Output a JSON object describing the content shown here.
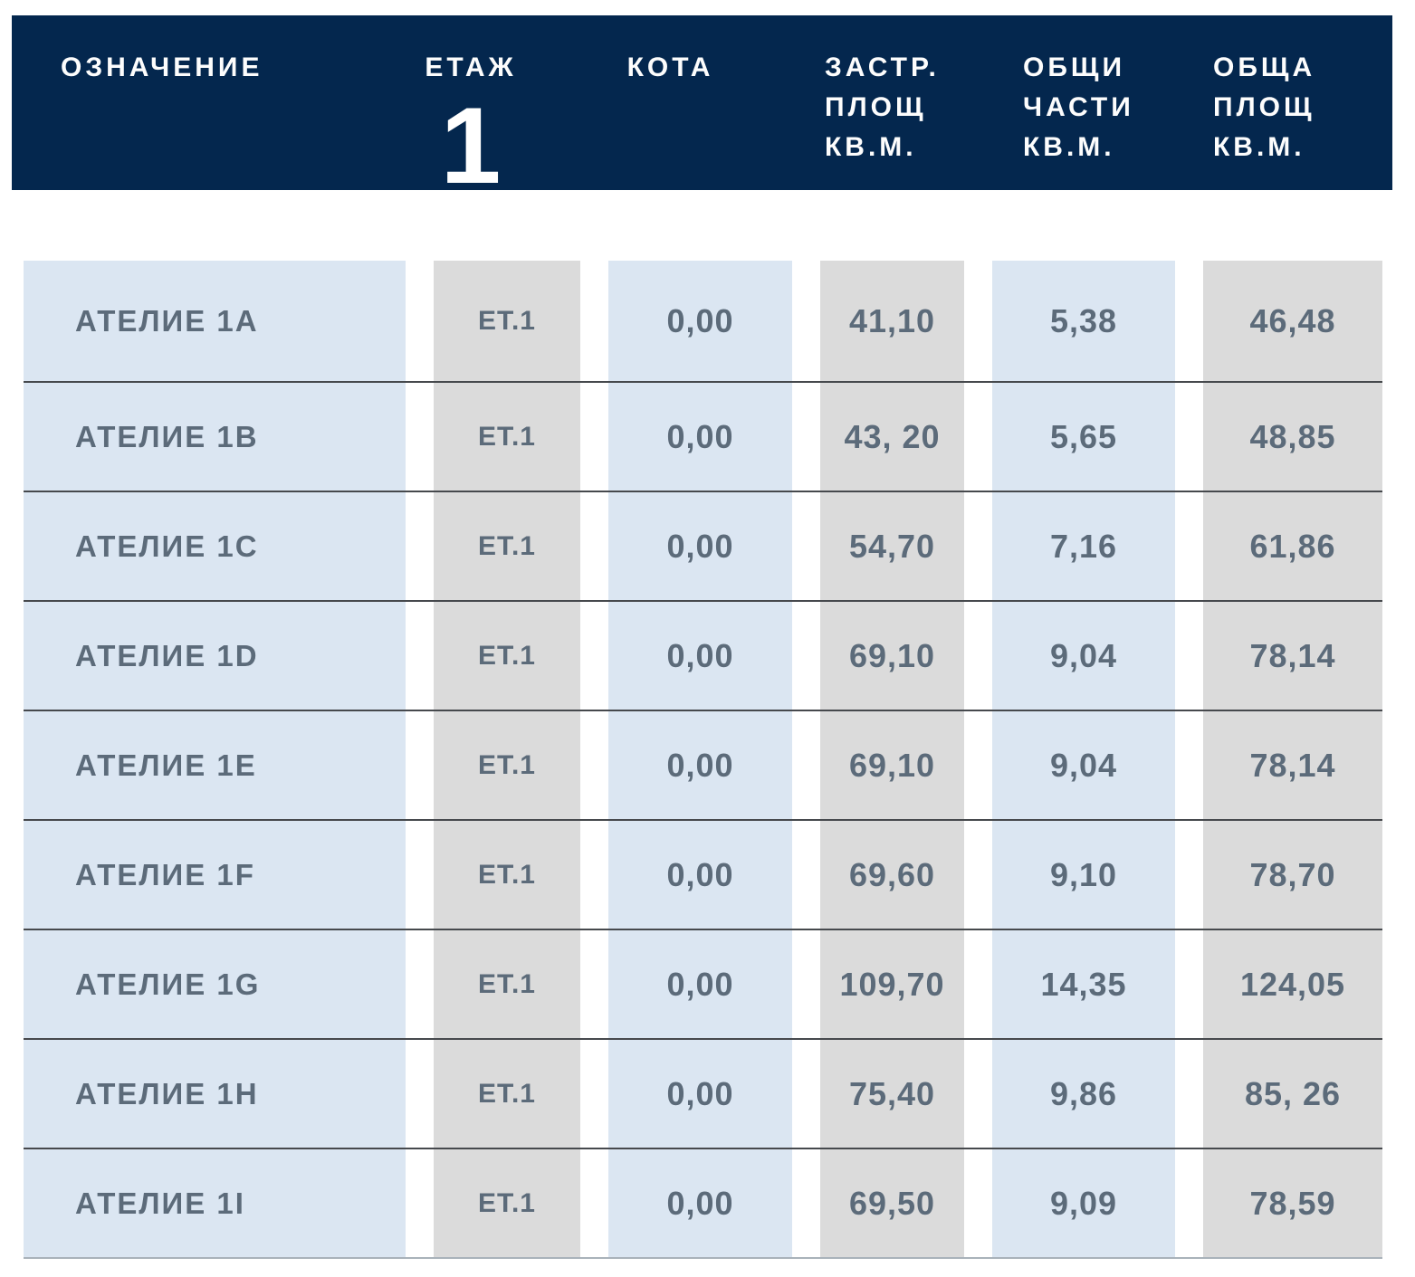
{
  "header": {
    "floor_number": "1",
    "columns": {
      "designation": "ОЗНАЧЕНИЕ",
      "floor": "ЕТАЖ",
      "elevation": "КОТА",
      "built_area": [
        "ЗАСТР.",
        "ПЛОЩ",
        "КВ.М."
      ],
      "common_parts": [
        "ОБЩИ",
        "ЧАСТИ",
        "КВ.М."
      ],
      "total_area": [
        "ОБЩА",
        "ПЛОЩ",
        "КВ.М."
      ]
    }
  },
  "rows": [
    {
      "designation": "АТЕЛИЕ 1A",
      "floor": "ЕТ.1",
      "elevation": "0,00",
      "built_area": "41,10",
      "common_parts": "5,38",
      "total_area": "46,48"
    },
    {
      "designation": "АТЕЛИЕ 1B",
      "floor": "ЕТ.1",
      "elevation": "0,00",
      "built_area": "43, 20",
      "common_parts": "5,65",
      "total_area": "48,85"
    },
    {
      "designation": "АТЕЛИЕ 1C",
      "floor": "ЕТ.1",
      "elevation": "0,00",
      "built_area": "54,70",
      "common_parts": "7,16",
      "total_area": "61,86"
    },
    {
      "designation": "АТЕЛИЕ 1D",
      "floor": "ЕТ.1",
      "elevation": "0,00",
      "built_area": "69,10",
      "common_parts": "9,04",
      "total_area": "78,14"
    },
    {
      "designation": "АТЕЛИЕ 1E",
      "floor": "ЕТ.1",
      "elevation": "0,00",
      "built_area": "69,10",
      "common_parts": "9,04",
      "total_area": "78,14"
    },
    {
      "designation": "АТЕЛИЕ 1F",
      "floor": "ЕТ.1",
      "elevation": "0,00",
      "built_area": "69,60",
      "common_parts": "9,10",
      "total_area": "78,70"
    },
    {
      "designation": "АТЕЛИЕ 1G",
      "floor": "ЕТ.1",
      "elevation": "0,00",
      "built_area": "109,70",
      "common_parts": "14,35",
      "total_area": "124,05"
    },
    {
      "designation": "АТЕЛИЕ 1H",
      "floor": "ЕТ.1",
      "elevation": "0,00",
      "built_area": "75,40",
      "common_parts": "9,86",
      "total_area": "85, 26"
    },
    {
      "designation": "АТЕЛИЕ 1I",
      "floor": "ЕТ.1",
      "elevation": "0,00",
      "built_area": "69,50",
      "common_parts": "9,09",
      "total_area": "78,59"
    }
  ],
  "colors": {
    "header_bg": "#04274e",
    "header_text": "#ffffff",
    "column_blue": "#dbe6f2",
    "column_gray": "#dbdbdb",
    "row_text": "#5c6b7a",
    "row_separator": "#46494d",
    "bottom_border": "#a9b2ba"
  }
}
